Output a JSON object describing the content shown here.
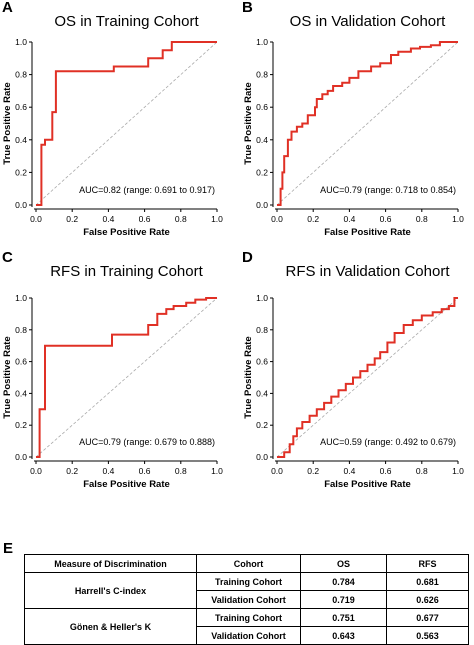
{
  "panels": [
    {
      "letter": "A",
      "title": "OS in Training Cohort",
      "auc_text": "AUC=0.82 (range: 0.691 to 0.917)"
    },
    {
      "letter": "B",
      "title": "OS in Validation Cohort",
      "auc_text": "AUC=0.79 (range: 0.718 to 0.854)"
    },
    {
      "letter": "C",
      "title": "RFS in Training Cohort",
      "auc_text": "AUC=0.79 (range: 0.679 to 0.888)"
    },
    {
      "letter": "D",
      "title": "RFS in Validation Cohort",
      "auc_text": "AUC=0.59 (range: 0.492 to 0.679)"
    }
  ],
  "axis": {
    "xlabel": "False Positive Rate",
    "ylabel": "True Positive Rate",
    "xticks": [
      "0.0",
      "0.2",
      "0.4",
      "0.6",
      "0.8",
      "1.0"
    ],
    "yticks": [
      "0.0",
      "0.2",
      "0.4",
      "0.6",
      "0.8",
      "1.0"
    ]
  },
  "colors": {
    "roc": "#e03025",
    "diagonal": "#aaaaaa",
    "axes": "#000000"
  },
  "table": {
    "label": "E",
    "headers": [
      "Measure of Discrimination",
      "Cohort",
      "OS",
      "RFS"
    ],
    "groups": [
      {
        "measure": "Harrell's C-index",
        "rows": [
          {
            "cohort": "Training Cohort",
            "os": "0.784",
            "rfs": "0.681"
          },
          {
            "cohort": "Validation Cohort",
            "os": "0.719",
            "rfs": "0.626"
          }
        ]
      },
      {
        "measure": "Gönen & Heller's K",
        "rows": [
          {
            "cohort": "Training Cohort",
            "os": "0.751",
            "rfs": "0.677"
          },
          {
            "cohort": "Validation Cohort",
            "os": "0.643",
            "rfs": "0.563"
          }
        ]
      }
    ]
  },
  "chart_data": [
    {
      "type": "line",
      "title": "OS in Training Cohort",
      "xlabel": "False Positive Rate",
      "ylabel": "True Positive Rate",
      "xlim": [
        0,
        1
      ],
      "ylim": [
        0,
        1
      ],
      "grid": false,
      "series": [
        {
          "x": [
            0,
            0.03,
            0.03,
            0.05,
            0.05,
            0.09,
            0.09,
            0.11,
            0.11,
            0.15,
            0.15,
            0.43,
            0.43,
            0.62,
            0.62,
            0.7,
            0.7,
            0.75,
            0.75,
            1.0
          ],
          "y": [
            0,
            0,
            0.37,
            0.37,
            0.4,
            0.4,
            0.57,
            0.57,
            0.82,
            0.82,
            0.82,
            0.82,
            0.85,
            0.85,
            0.9,
            0.9,
            0.95,
            0.95,
            1.0,
            1.0
          ]
        }
      ]
    },
    {
      "type": "line",
      "title": "OS in Validation Cohort",
      "xlabel": "False Positive Rate",
      "ylabel": "True Positive Rate",
      "xlim": [
        0,
        1
      ],
      "ylim": [
        0,
        1
      ],
      "grid": false,
      "series": [
        {
          "x": [
            0,
            0.02,
            0.02,
            0.03,
            0.03,
            0.04,
            0.04,
            0.06,
            0.06,
            0.08,
            0.08,
            0.11,
            0.11,
            0.14,
            0.14,
            0.17,
            0.17,
            0.21,
            0.21,
            0.22,
            0.22,
            0.25,
            0.25,
            0.28,
            0.28,
            0.31,
            0.31,
            0.36,
            0.36,
            0.4,
            0.4,
            0.45,
            0.45,
            0.52,
            0.52,
            0.57,
            0.57,
            0.63,
            0.63,
            0.67,
            0.67,
            0.74,
            0.74,
            0.79,
            0.79,
            0.85,
            0.85,
            0.9,
            0.9,
            1.0
          ],
          "y": [
            0,
            0,
            0.1,
            0.1,
            0.2,
            0.2,
            0.3,
            0.3,
            0.4,
            0.4,
            0.45,
            0.45,
            0.48,
            0.48,
            0.5,
            0.5,
            0.55,
            0.55,
            0.6,
            0.6,
            0.65,
            0.65,
            0.68,
            0.68,
            0.7,
            0.7,
            0.73,
            0.73,
            0.75,
            0.75,
            0.78,
            0.78,
            0.82,
            0.82,
            0.85,
            0.85,
            0.87,
            0.87,
            0.92,
            0.92,
            0.94,
            0.94,
            0.96,
            0.96,
            0.97,
            0.97,
            0.98,
            0.98,
            1.0,
            1.0
          ]
        }
      ]
    },
    {
      "type": "line",
      "title": "RFS in Training Cohort",
      "xlabel": "False Positive Rate",
      "ylabel": "True Positive Rate",
      "xlim": [
        0,
        1
      ],
      "ylim": [
        0,
        1
      ],
      "grid": false,
      "series": [
        {
          "x": [
            0,
            0.02,
            0.02,
            0.05,
            0.05,
            0.42,
            0.42,
            0.62,
            0.62,
            0.67,
            0.67,
            0.72,
            0.72,
            0.76,
            0.76,
            0.83,
            0.83,
            0.88,
            0.88,
            0.94,
            0.94,
            1.0
          ],
          "y": [
            0,
            0,
            0.3,
            0.3,
            0.7,
            0.7,
            0.77,
            0.77,
            0.83,
            0.83,
            0.9,
            0.9,
            0.93,
            0.93,
            0.95,
            0.95,
            0.97,
            0.97,
            0.99,
            0.99,
            1.0,
            1.0
          ]
        }
      ]
    },
    {
      "type": "line",
      "title": "RFS in Validation Cohort",
      "xlabel": "False Positive Rate",
      "ylabel": "True Positive Rate",
      "xlim": [
        0,
        1
      ],
      "ylim": [
        0,
        1
      ],
      "grid": false,
      "series": [
        {
          "x": [
            0,
            0.04,
            0.04,
            0.07,
            0.07,
            0.09,
            0.09,
            0.11,
            0.11,
            0.14,
            0.14,
            0.18,
            0.18,
            0.22,
            0.22,
            0.26,
            0.26,
            0.3,
            0.3,
            0.34,
            0.34,
            0.38,
            0.38,
            0.42,
            0.42,
            0.46,
            0.46,
            0.5,
            0.5,
            0.54,
            0.54,
            0.57,
            0.57,
            0.61,
            0.61,
            0.65,
            0.65,
            0.7,
            0.7,
            0.75,
            0.75,
            0.8,
            0.8,
            0.86,
            0.86,
            0.91,
            0.91,
            0.95,
            0.95,
            0.98,
            0.98,
            1.0
          ],
          "y": [
            0,
            0,
            0.03,
            0.03,
            0.08,
            0.08,
            0.13,
            0.13,
            0.18,
            0.18,
            0.22,
            0.22,
            0.26,
            0.26,
            0.3,
            0.3,
            0.34,
            0.34,
            0.38,
            0.38,
            0.42,
            0.42,
            0.46,
            0.46,
            0.5,
            0.5,
            0.54,
            0.54,
            0.58,
            0.58,
            0.62,
            0.62,
            0.66,
            0.66,
            0.72,
            0.72,
            0.78,
            0.78,
            0.83,
            0.83,
            0.86,
            0.86,
            0.89,
            0.89,
            0.91,
            0.91,
            0.93,
            0.93,
            0.95,
            0.95,
            1.0,
            1.0
          ]
        }
      ]
    }
  ]
}
